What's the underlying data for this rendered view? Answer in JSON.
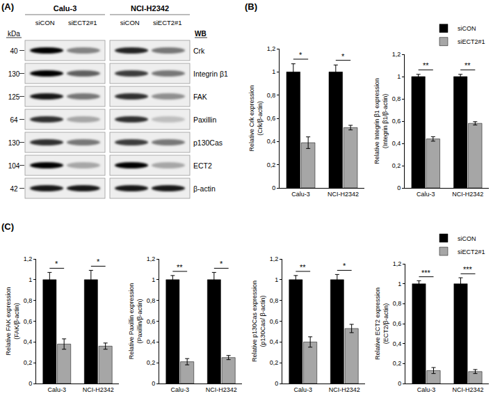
{
  "panel_labels": [
    "(A)",
    "(B)",
    "(C)"
  ],
  "blot": {
    "unit_label": "kDa",
    "method_label": "WB",
    "cell_lines": [
      "Calu-3",
      "NCI-H2342"
    ],
    "lanes": [
      "siCON",
      "siECT2#1"
    ],
    "rows": [
      {
        "kda": "40",
        "protein": "Crk",
        "bands": [
          [
            1,
            0.45
          ],
          [
            0.85,
            0.5
          ]
        ]
      },
      {
        "kda": "130",
        "protein": "Integrin β1",
        "bands": [
          [
            1,
            0.6
          ],
          [
            0.75,
            0.5
          ]
        ]
      },
      {
        "kda": "125",
        "protein": "FAK",
        "bands": [
          [
            0.9,
            0.5
          ],
          [
            0.8,
            0.4
          ]
        ]
      },
      {
        "kda": "64",
        "protein": "Paxillin",
        "bands": [
          [
            0.8,
            0.3
          ],
          [
            0.8,
            0.2
          ]
        ]
      },
      {
        "kda": "130",
        "protein": "p130Cas",
        "bands": [
          [
            0.8,
            0.5
          ],
          [
            0.75,
            0.5
          ]
        ]
      },
      {
        "kda": "104",
        "protein": "ECT2",
        "bands": [
          [
            1,
            0.3
          ],
          [
            1,
            0.3
          ]
        ]
      },
      {
        "kda": "42",
        "protein": "β-actin",
        "bands": [
          [
            0.9,
            0.9
          ],
          [
            0.9,
            0.9
          ]
        ]
      }
    ]
  },
  "chart_data": [
    {
      "type": "bar",
      "y_label": [
        "Relative Crk expression",
        "(Crk/β-actin)"
      ],
      "categories": [
        "Calu-3",
        "NCI-H2342"
      ],
      "series": [
        {
          "name": "siCON",
          "color": "#000000",
          "values": [
            1,
            1
          ],
          "errors": [
            0.07,
            0.06
          ]
        },
        {
          "name": "siECT2#1",
          "color": "#a6a6a6",
          "values": [
            0.39,
            0.52
          ],
          "errors": [
            0.05,
            0.02
          ]
        }
      ],
      "significance": [
        "*",
        "*"
      ],
      "ylim": [
        0,
        1.2
      ],
      "yticks": [
        0,
        {
          "value": 0.2,
          "label": "0,2"
        },
        {
          "value": 0.4,
          "label": "0,4"
        },
        {
          "value": 0.6,
          "label": "0,6"
        },
        {
          "value": 0.8,
          "label": "0,8"
        },
        1,
        {
          "value": 1.2,
          "label": "1,2"
        }
      ],
      "grid": false
    },
    {
      "type": "bar",
      "y_label": [
        "Relative Integrin β1 expression",
        "(Integrin β1/β-actin)"
      ],
      "categories": [
        "Calu-3",
        "NCI-H2342"
      ],
      "series": [
        {
          "name": "siCON",
          "color": "#000000",
          "values": [
            1,
            1
          ],
          "errors": [
            0.02,
            0.02
          ]
        },
        {
          "name": "siECT2#1",
          "color": "#a6a6a6",
          "values": [
            0.44,
            0.58
          ],
          "errors": [
            0.02,
            0.015
          ]
        }
      ],
      "significance": [
        "**",
        "**"
      ],
      "ylim": [
        0,
        1.2
      ],
      "yticks": [
        0,
        {
          "value": 0.2,
          "label": "0,2"
        },
        {
          "value": 0.4,
          "label": "0,4"
        },
        {
          "value": 0.6,
          "label": "0,6"
        },
        {
          "value": 0.8,
          "label": "0,8"
        },
        1,
        {
          "value": 1.2,
          "label": "1,2"
        }
      ],
      "grid": false,
      "legend": "top right"
    },
    {
      "type": "bar",
      "y_label": [
        "Relative FAK expression",
        "(FAK/β-actin)"
      ],
      "categories": [
        "Calu-3",
        "NCI-H2342"
      ],
      "series": [
        {
          "name": "siCON",
          "color": "#000000",
          "values": [
            1,
            1
          ],
          "errors": [
            0.07,
            0.09
          ]
        },
        {
          "name": "siECT2#1",
          "color": "#a6a6a6",
          "values": [
            0.38,
            0.36
          ],
          "errors": [
            0.05,
            0.03
          ]
        }
      ],
      "significance": [
        "*",
        "*"
      ],
      "ylim": [
        0,
        1.2
      ],
      "yticks": [
        0,
        {
          "value": 0.2,
          "label": "0,2"
        },
        {
          "value": 0.4,
          "label": "0,4"
        },
        {
          "value": 0.6,
          "label": "0,6"
        },
        {
          "value": 0.8,
          "label": "0,8"
        },
        1,
        {
          "value": 1.2,
          "label": "1,2"
        }
      ],
      "grid": false
    },
    {
      "type": "bar",
      "y_label": [
        "Relative Paxillin expression",
        "(Paxillin/β-actin)"
      ],
      "categories": [
        "Calu-3",
        "NCI-H2342"
      ],
      "series": [
        {
          "name": "siCON",
          "color": "#000000",
          "values": [
            1,
            1
          ],
          "errors": [
            0.04,
            0.07
          ]
        },
        {
          "name": "siECT2#1",
          "color": "#a6a6a6",
          "values": [
            0.21,
            0.25
          ],
          "errors": [
            0.03,
            0.02
          ]
        }
      ],
      "significance": [
        "**",
        "*"
      ],
      "ylim": [
        0,
        1.2
      ],
      "yticks": [
        0,
        {
          "value": 0.2,
          "label": "0,2"
        },
        {
          "value": 0.4,
          "label": "0,4"
        },
        {
          "value": 0.6,
          "label": "0,6"
        },
        {
          "value": 0.8,
          "label": "0,8"
        },
        1,
        {
          "value": 1.2,
          "label": "1,2"
        }
      ],
      "grid": false
    },
    {
      "type": "bar",
      "y_label": [
        "Relative p130Cas expression",
        "(p130Cas/ β-actin)"
      ],
      "categories": [
        "Calu-3",
        "NCI-H2342"
      ],
      "series": [
        {
          "name": "siCON",
          "color": "#000000",
          "values": [
            1,
            1
          ],
          "errors": [
            0.04,
            0.05
          ]
        },
        {
          "name": "siECT2#1",
          "color": "#a6a6a6",
          "values": [
            0.4,
            0.53
          ],
          "errors": [
            0.05,
            0.04
          ]
        }
      ],
      "significance": [
        "**",
        "*"
      ],
      "ylim": [
        0,
        1.2
      ],
      "yticks": [
        0,
        {
          "value": 0.2,
          "label": "0,2"
        },
        {
          "value": 0.4,
          "label": "0,4"
        },
        {
          "value": 0.6,
          "label": "0,6"
        },
        {
          "value": 0.8,
          "label": "0,8"
        },
        1,
        {
          "value": 1.2,
          "label": "1,2"
        }
      ],
      "grid": false
    },
    {
      "type": "bar",
      "y_label": [
        "Relative ECT2 expression",
        "(ECT2/β-actin)"
      ],
      "categories": [
        "Calu-3",
        "NCI-H2342"
      ],
      "series": [
        {
          "name": "siCON",
          "color": "#000000",
          "values": [
            1,
            1
          ],
          "errors": [
            0.03,
            0.06
          ]
        },
        {
          "name": "siECT2#1",
          "color": "#a6a6a6",
          "values": [
            0.13,
            0.12
          ],
          "errors": [
            0.03,
            0.02
          ]
        }
      ],
      "significance": [
        "***",
        "***"
      ],
      "ylim": [
        0,
        1.2
      ],
      "yticks": [
        0,
        {
          "value": 0.2,
          "label": "0,2"
        },
        {
          "value": 0.4,
          "label": "0,4"
        },
        {
          "value": 0.6,
          "label": "0,6"
        },
        {
          "value": 0.8,
          "label": "0,8"
        },
        1,
        {
          "value": 1.2,
          "label": "1,2"
        }
      ],
      "grid": false,
      "legend": "top right"
    }
  ]
}
